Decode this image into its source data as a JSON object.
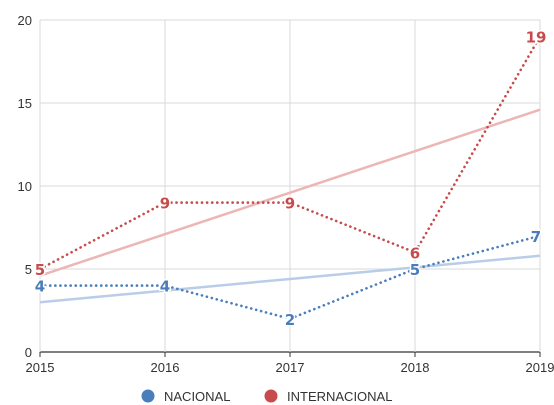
{
  "chart_data": {
    "type": "line",
    "x": [
      "2015",
      "2016",
      "2017",
      "2018",
      "2019"
    ],
    "ylim": [
      0,
      20
    ],
    "yticks": [
      "0",
      "5",
      "10",
      "15",
      "20"
    ],
    "grid": true,
    "legend_position": "bottom",
    "series": [
      {
        "name": "NACIONAL",
        "values": [
          4,
          4,
          2,
          5,
          7
        ],
        "labels": [
          "4",
          "4",
          "2",
          "5",
          "7"
        ],
        "color": "#4a7ebb",
        "trend_color": "#b9cde8",
        "trendline": [
          3.0,
          3.7,
          4.4,
          5.1,
          5.8
        ]
      },
      {
        "name": "INTERNACIONAL",
        "values": [
          5,
          9,
          9,
          6,
          19
        ],
        "labels": [
          "5",
          "9",
          "9",
          "6",
          "19"
        ],
        "color": "#c84b4b",
        "trend_color": "#ecb6b6",
        "trendline": [
          4.6,
          7.1,
          9.6,
          12.1,
          14.6
        ]
      }
    ]
  }
}
